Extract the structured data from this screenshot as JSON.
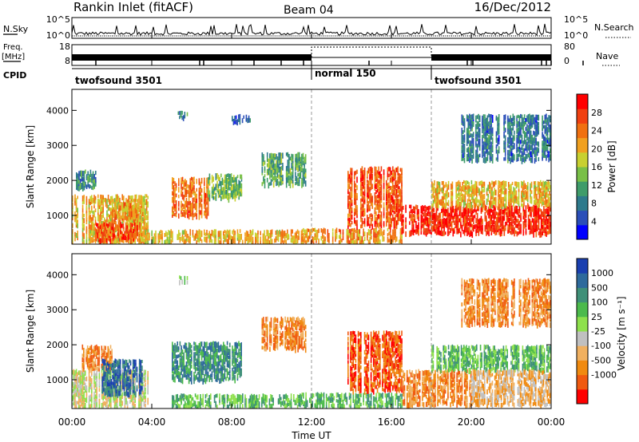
{
  "header": {
    "station": "Rankin Inlet (fitACF)",
    "beam": "Beam 04",
    "date": "16/Dec/2012"
  },
  "top_panels": {
    "nsky": {
      "label": "N.Sky",
      "tick_top": "10^5",
      "tick_bottom": "10^0",
      "right_label": "N.Search",
      "right_tick_top": "10^5",
      "right_tick_bottom": "10^0"
    },
    "freq": {
      "label_line1": "Freq.",
      "label_line2": "[MHz]",
      "tick_top": "18",
      "tick_bottom": "8",
      "right_label": "Nave",
      "right_tick_top": "80",
      "right_tick_bottom": "0"
    },
    "cpid": {
      "label": "CPID",
      "segments": [
        {
          "text": "twofsound 3501",
          "start_hour": 0
        },
        {
          "text": "normal 150",
          "start_hour": 12
        },
        {
          "text": "twofsound 3501",
          "start_hour": 18
        }
      ]
    }
  },
  "chart_data": [
    {
      "type": "heatmap",
      "name": "power-panel",
      "ylabel": "Slant Range [km]",
      "xlim_hours": [
        0,
        24
      ],
      "ylim_km": [
        180,
        4600
      ],
      "yticks": [
        1000,
        2000,
        3000,
        4000
      ],
      "colorbar": {
        "label": "Power [dB]",
        "ticks": [
          4,
          8,
          12,
          16,
          20,
          24,
          28
        ],
        "range": [
          0,
          32
        ],
        "colors": [
          "#0000ff",
          "#2a4eb8",
          "#2e7a8c",
          "#3f9c6a",
          "#79c047",
          "#c8d030",
          "#f0a020",
          "#f07010",
          "#f04010",
          "#ff0000"
        ]
      },
      "regions": [
        {
          "t0": 0.0,
          "t1": 3.8,
          "r0": 250,
          "r1": 1600,
          "level": 20
        },
        {
          "t0": 0.2,
          "t1": 1.2,
          "r0": 1800,
          "r1": 2300,
          "level": 10
        },
        {
          "t0": 1.2,
          "t1": 3.4,
          "r0": 300,
          "r1": 800,
          "level": 26
        },
        {
          "t0": 2.0,
          "t1": 3.3,
          "r0": 900,
          "r1": 1400,
          "level": 22
        },
        {
          "t0": 3.4,
          "t1": 5.0,
          "r0": 250,
          "r1": 600,
          "level": 18
        },
        {
          "t0": 5.0,
          "t1": 6.8,
          "r0": 1000,
          "r1": 2100,
          "level": 24
        },
        {
          "t0": 6.8,
          "t1": 8.5,
          "r0": 1500,
          "r1": 2200,
          "level": 14
        },
        {
          "t0": 5.0,
          "t1": 11.5,
          "r0": 250,
          "r1": 600,
          "level": 20
        },
        {
          "t0": 9.5,
          "t1": 11.8,
          "r0": 1900,
          "r1": 2800,
          "level": 12
        },
        {
          "t0": 11.5,
          "t1": 16.5,
          "r0": 250,
          "r1": 650,
          "level": 22
        },
        {
          "t0": 13.8,
          "t1": 16.5,
          "r0": 700,
          "r1": 2400,
          "level": 26
        },
        {
          "t0": 16.5,
          "t1": 24.0,
          "r0": 500,
          "r1": 1300,
          "level": 29
        },
        {
          "t0": 18.0,
          "t1": 24.0,
          "r0": 1300,
          "r1": 2000,
          "level": 20
        },
        {
          "t0": 19.5,
          "t1": 24.0,
          "r0": 2600,
          "r1": 3900,
          "level": 8
        },
        {
          "t0": 5.3,
          "t1": 5.8,
          "r0": 3800,
          "r1": 4000,
          "level": 10
        },
        {
          "t0": 8.0,
          "t1": 9.0,
          "r0": 3700,
          "r1": 3900,
          "level": 6
        }
      ]
    },
    {
      "type": "heatmap",
      "name": "velocity-panel",
      "ylabel": "Slant Range [km]",
      "xlabel": "Time UT",
      "xlim_hours": [
        0,
        24
      ],
      "ylim_km": [
        180,
        4600
      ],
      "yticks": [
        1000,
        2000,
        3000,
        4000
      ],
      "xticks": [
        "00:00",
        "04:00",
        "08:00",
        "12:00",
        "16:00",
        "20:00",
        "00:00"
      ],
      "colorbar": {
        "label": "Velocity [m s⁻¹]",
        "ticks": [
          "1000",
          "500",
          "100",
          "25",
          "-25",
          "-100",
          "-500",
          "-1000"
        ],
        "colors": [
          "#1a3fb0",
          "#2e6a9c",
          "#3f9078",
          "#4cba4c",
          "#8ee04c",
          "#c0c0c0",
          "#f0b060",
          "#f08a10",
          "#f05a10",
          "#ff0000"
        ]
      },
      "regions": [
        {
          "t0": 0.0,
          "t1": 3.8,
          "r0": 250,
          "r1": 1300,
          "level": 5
        },
        {
          "t0": 0.5,
          "t1": 2.0,
          "r0": 1300,
          "r1": 2000,
          "level": 7
        },
        {
          "t0": 1.5,
          "t1": 3.5,
          "r0": 600,
          "r1": 1600,
          "level": 1
        },
        {
          "t0": 5.0,
          "t1": 8.5,
          "r0": 1000,
          "r1": 2100,
          "level": 2
        },
        {
          "t0": 5.0,
          "t1": 11.5,
          "r0": 250,
          "r1": 600,
          "level": 3
        },
        {
          "t0": 9.5,
          "t1": 11.8,
          "r0": 1900,
          "r1": 2800,
          "level": 7
        },
        {
          "t0": 11.5,
          "t1": 16.5,
          "r0": 250,
          "r1": 650,
          "level": 3
        },
        {
          "t0": 13.8,
          "t1": 16.5,
          "r0": 700,
          "r1": 2400,
          "level": 8
        },
        {
          "t0": 16.5,
          "t1": 20.0,
          "r0": 300,
          "r1": 1300,
          "level": 7
        },
        {
          "t0": 18.0,
          "t1": 24.0,
          "r0": 1300,
          "r1": 2000,
          "level": 3
        },
        {
          "t0": 20.0,
          "t1": 24.0,
          "r0": 300,
          "r1": 1300,
          "level": 6
        },
        {
          "t0": 19.5,
          "t1": 24.0,
          "r0": 2600,
          "r1": 3900,
          "level": 7
        },
        {
          "t0": 5.3,
          "t1": 5.8,
          "r0": 3800,
          "r1": 4000,
          "level": 4
        }
      ]
    }
  ]
}
